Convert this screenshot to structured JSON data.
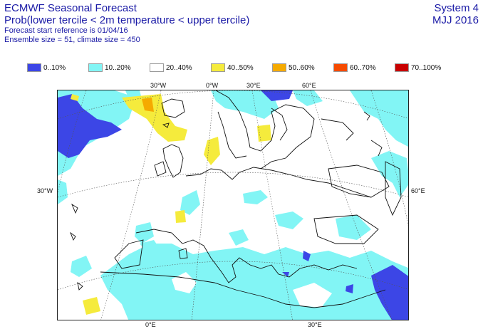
{
  "header": {
    "title": "ECMWF Seasonal Forecast",
    "subtitle": "Prob(lower tercile < 2m temperature < upper tercile)",
    "line3": "Forecast start reference is 01/04/16",
    "line4": "Ensemble size = 51, climate size = 450",
    "system": "System 4",
    "period": "MJJ 2016"
  },
  "legend": [
    {
      "label": "0..10%",
      "color": "#3c46e6"
    },
    {
      "label": "10..20%",
      "color": "#82f5f5"
    },
    {
      "label": "20..40%",
      "color": "#ffffff"
    },
    {
      "label": "40..50%",
      "color": "#f5eb3c"
    },
    {
      "label": "50..60%",
      "color": "#f5aa00"
    },
    {
      "label": "60..70%",
      "color": "#f54b00"
    },
    {
      "label": "70..100%",
      "color": "#c80000"
    }
  ],
  "axis_labels": {
    "top": [
      "30°W",
      "0°W",
      "30°E",
      "60°E"
    ],
    "left": "30°W",
    "right": "60°E",
    "bottom": [
      "0°E",
      "30°E"
    ]
  }
}
